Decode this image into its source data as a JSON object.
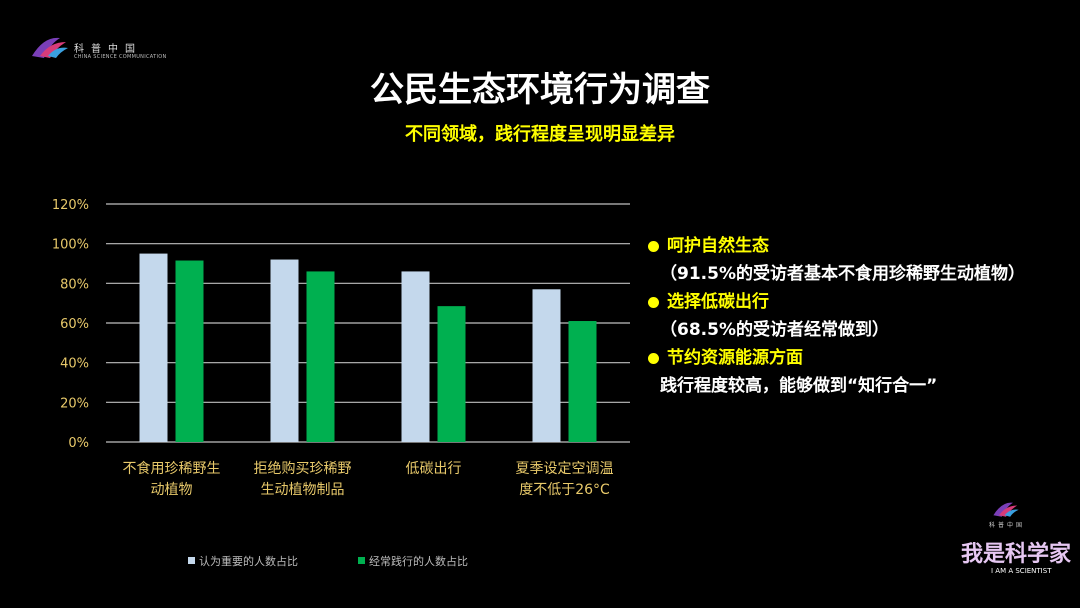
{
  "logo": {
    "cn": "科普中国",
    "en": "CHINA SCIENCE COMMUNICATION"
  },
  "title": "公民生态环境行为调查",
  "subtitle": "不同领域，践行程度呈现明显差异",
  "chart_data": {
    "type": "bar",
    "categories": [
      [
        "不食用珍稀野生",
        "动植物"
      ],
      [
        "拒绝购买珍稀野",
        "生动植物制品"
      ],
      [
        "低碳出行"
      ],
      [
        "夏季设定空调温",
        "度不低于26°C"
      ]
    ],
    "series": [
      {
        "name": "认为重要的人数占比",
        "color": "#c4d8ec",
        "values": [
          95,
          92,
          86,
          77
        ]
      },
      {
        "name": "经常践行的人数占比",
        "color": "#00b050",
        "values": [
          91.5,
          86,
          68.5,
          61
        ]
      }
    ],
    "yticks": [
      "0%",
      "20%",
      "40%",
      "60%",
      "80%",
      "100%",
      "120%"
    ],
    "ylim": [
      0,
      120
    ],
    "grid": true,
    "legend": "bottom"
  },
  "bullets": [
    {
      "head": "呵护自然生态",
      "body": "（91.5%的受访者基本不食用珍稀野生动植物）"
    },
    {
      "head": "选择低碳出行",
      "body": "（68.5%的受访者经常做到）"
    },
    {
      "head": "节约资源能源方面",
      "body": "践行程度较高，能够做到“知行合一”"
    }
  ],
  "brand": {
    "cn_small": "科普中国",
    "title": "我是科学家",
    "en": "I AM A SCIENTIST"
  }
}
